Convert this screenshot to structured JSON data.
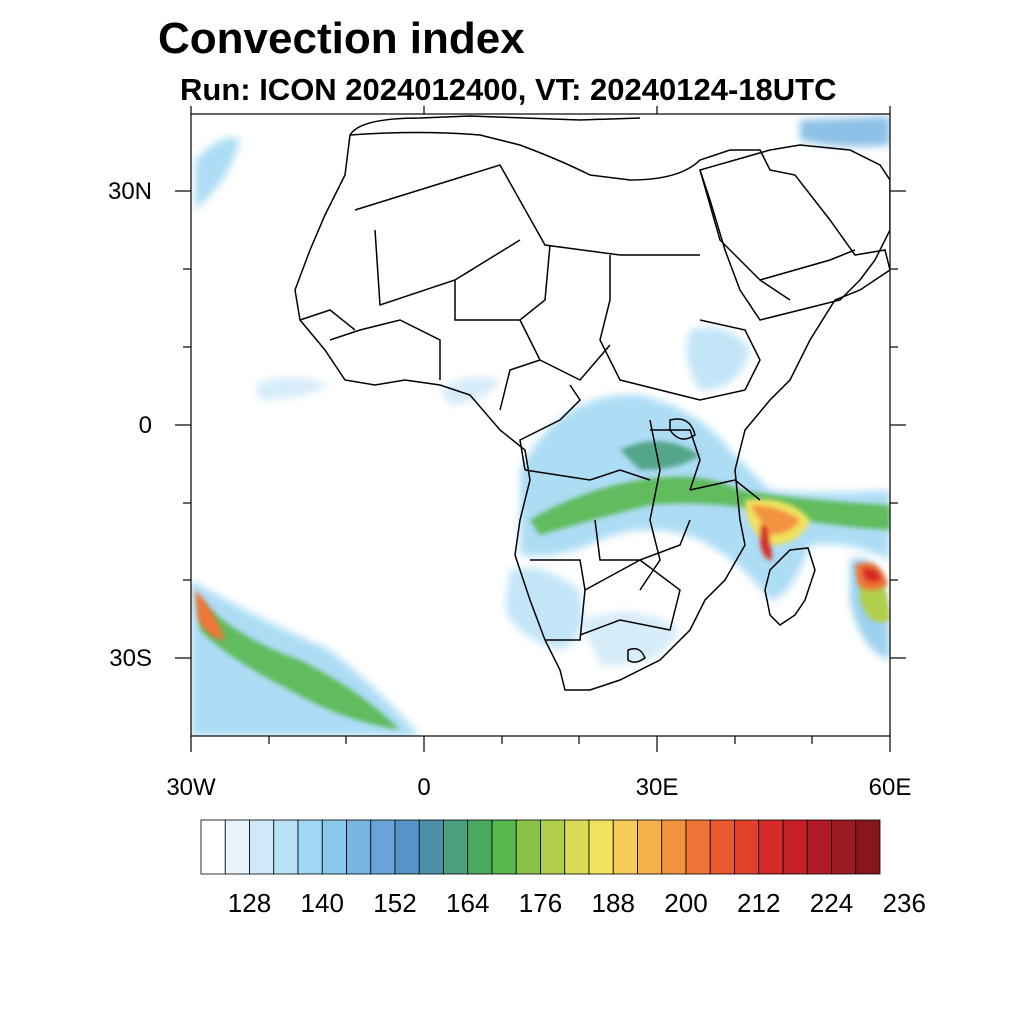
{
  "title": "Convection index",
  "subtitle": "Run: ICON 2024012400,  VT: 20240124-18UTC",
  "axes": {
    "y_labels": [
      "30N",
      "0",
      "30S"
    ],
    "x_labels": [
      "30W",
      "0",
      "30E",
      "60E"
    ]
  },
  "colorbar": {
    "labels": [
      "128",
      "140",
      "152",
      "164",
      "176",
      "188",
      "200",
      "212",
      "224",
      "236"
    ],
    "colors": [
      "#ffffff",
      "#e8f4fb",
      "#cfe9f8",
      "#b8e1f6",
      "#9fd7f4",
      "#89c9ec",
      "#78b6e2",
      "#6aa3d7",
      "#5893c8",
      "#4b8fa9",
      "#4ba07f",
      "#49ab5f",
      "#56b84c",
      "#8bc34a",
      "#b2cf4b",
      "#d8db55",
      "#f1e35e",
      "#f7cc58",
      "#f5b04b",
      "#f3923f",
      "#ef7437",
      "#e9582f",
      "#e14129",
      "#d62b28",
      "#c62027",
      "#b21b25",
      "#9c1a22",
      "#85171d"
    ]
  },
  "map": {
    "type": "map",
    "region": "Africa",
    "lat_range": [
      -40,
      40
    ],
    "lon_range": [
      -30,
      60
    ]
  }
}
